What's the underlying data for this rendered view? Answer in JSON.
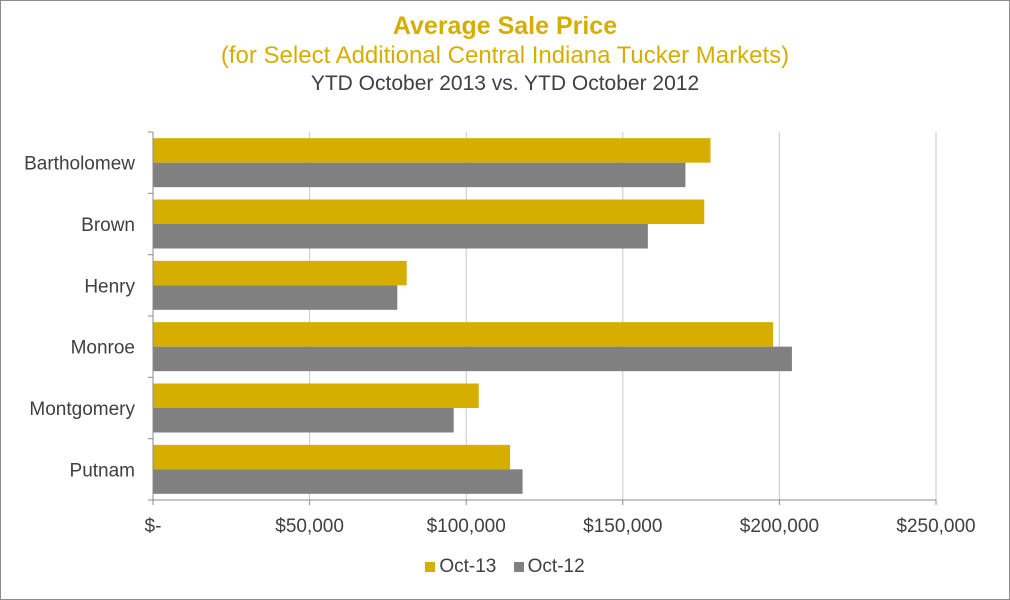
{
  "colors": {
    "oct13": "#D6AE00",
    "oct12": "#808080",
    "title": "#D6AE00"
  },
  "chart_data": {
    "type": "bar",
    "orientation": "horizontal",
    "title": "Average Sale Price",
    "subtitle": "(for Select Additional Central Indiana Tucker Markets)",
    "subtitle2": "YTD October 2013 vs. YTD October 2012",
    "categories": [
      "Bartholomew",
      "Brown",
      "Henry",
      "Monroe",
      "Montgomery",
      "Putnam"
    ],
    "series": [
      {
        "name": "Oct-13",
        "values": [
          178000,
          176000,
          81000,
          198000,
          104000,
          114000
        ]
      },
      {
        "name": "Oct-12",
        "values": [
          170000,
          158000,
          78000,
          204000,
          96000,
          118000
        ]
      }
    ],
    "xlim": [
      0,
      250000
    ],
    "x_ticks": [
      0,
      50000,
      100000,
      150000,
      200000,
      250000
    ],
    "x_tick_labels": [
      "$-",
      "$50,000",
      "$100,000",
      "$150,000",
      "$200,000",
      "$250,000"
    ],
    "grid": "vertical",
    "legend": "bottom"
  }
}
